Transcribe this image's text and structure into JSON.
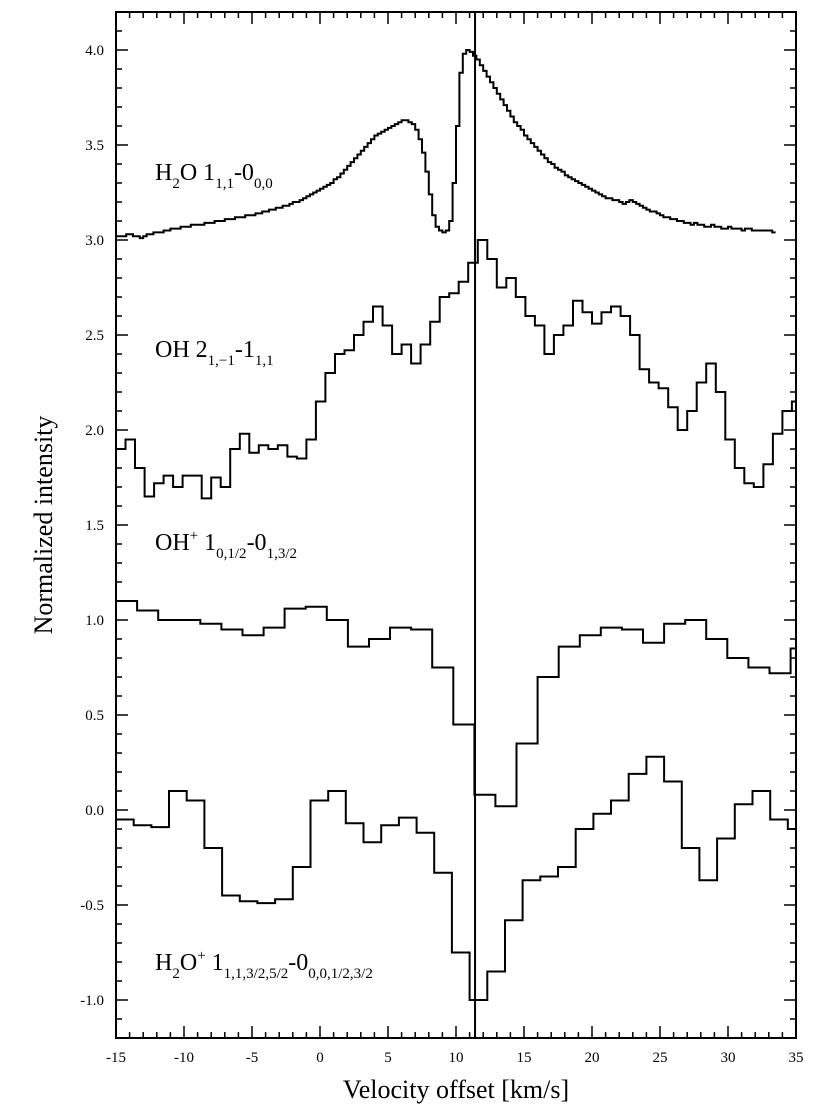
{
  "chart_data": {
    "type": "line",
    "step": true,
    "xlabel": "Velocity offset [km/s]",
    "ylabel": "Normalized intensity",
    "xlim": [
      -15,
      35
    ],
    "ylim": [
      -1.2,
      4.2
    ],
    "xticks": [
      "-15",
      "-10",
      "-5",
      "0",
      "5",
      "10",
      "15",
      "20",
      "25",
      "30",
      "35"
    ],
    "yticks": [
      "-1.0",
      "-0.5",
      "0.0",
      "0.5",
      "1.0",
      "1.5",
      "2.0",
      "2.5",
      "3.0",
      "3.5",
      "4.0"
    ],
    "vline_x": 11.4,
    "grid": false,
    "series": [
      {
        "label": {
          "parts": [
            [
              "n",
              "H"
            ],
            [
              "sub",
              "2"
            ],
            [
              "n",
              "O 1"
            ],
            [
              "sub",
              "1,1"
            ],
            [
              "n",
              "-0"
            ],
            [
              "sub",
              "0,0"
            ]
          ]
        },
        "x_start": -15,
        "x_step": 0.25,
        "values": [
          3.02,
          3.02,
          3.02,
          3.03,
          3.03,
          3.02,
          3.02,
          3.01,
          3.02,
          3.03,
          3.03,
          3.04,
          3.04,
          3.04,
          3.05,
          3.05,
          3.06,
          3.06,
          3.06,
          3.07,
          3.07,
          3.07,
          3.08,
          3.08,
          3.08,
          3.08,
          3.09,
          3.09,
          3.09,
          3.1,
          3.1,
          3.1,
          3.11,
          3.11,
          3.11,
          3.12,
          3.12,
          3.12,
          3.13,
          3.13,
          3.13,
          3.14,
          3.14,
          3.15,
          3.15,
          3.16,
          3.16,
          3.17,
          3.17,
          3.18,
          3.18,
          3.19,
          3.2,
          3.2,
          3.21,
          3.22,
          3.23,
          3.24,
          3.25,
          3.26,
          3.27,
          3.28,
          3.29,
          3.3,
          3.32,
          3.33,
          3.35,
          3.37,
          3.39,
          3.41,
          3.43,
          3.45,
          3.47,
          3.49,
          3.51,
          3.53,
          3.55,
          3.56,
          3.57,
          3.58,
          3.59,
          3.6,
          3.61,
          3.62,
          3.63,
          3.63,
          3.62,
          3.61,
          3.58,
          3.53,
          3.46,
          3.36,
          3.24,
          3.13,
          3.07,
          3.05,
          3.04,
          3.05,
          3.1,
          3.3,
          3.6,
          3.88,
          3.98,
          4.0,
          3.99,
          3.97,
          3.95,
          3.92,
          3.89,
          3.86,
          3.83,
          3.8,
          3.77,
          3.74,
          3.71,
          3.68,
          3.65,
          3.62,
          3.6,
          3.58,
          3.55,
          3.53,
          3.51,
          3.49,
          3.47,
          3.45,
          3.43,
          3.41,
          3.4,
          3.38,
          3.37,
          3.36,
          3.34,
          3.33,
          3.32,
          3.31,
          3.3,
          3.29,
          3.28,
          3.27,
          3.26,
          3.25,
          3.24,
          3.23,
          3.22,
          3.22,
          3.21,
          3.21,
          3.2,
          3.19,
          3.2,
          3.21,
          3.2,
          3.19,
          3.18,
          3.17,
          3.16,
          3.15,
          3.15,
          3.14,
          3.13,
          3.12,
          3.12,
          3.11,
          3.11,
          3.1,
          3.1,
          3.09,
          3.09,
          3.08,
          3.09,
          3.08,
          3.08,
          3.07,
          3.07,
          3.08,
          3.07,
          3.07,
          3.06,
          3.06,
          3.07,
          3.06,
          3.06,
          3.06,
          3.05,
          3.06,
          3.06,
          3.05,
          3.05,
          3.05,
          3.05,
          3.05,
          3.05,
          3.04
        ]
      },
      {
        "label": {
          "parts": [
            [
              "n",
              "OH 2"
            ],
            [
              "sub",
              "1,−1"
            ],
            [
              "n",
              "-1"
            ],
            [
              "sub",
              "1,1"
            ]
          ]
        },
        "x_start": -15,
        "x_step": 0.7,
        "values": [
          1.9,
          1.95,
          1.8,
          1.65,
          1.72,
          1.76,
          1.7,
          1.76,
          1.76,
          1.64,
          1.75,
          1.7,
          1.9,
          1.98,
          1.88,
          1.92,
          1.9,
          1.92,
          1.86,
          1.85,
          1.95,
          2.15,
          2.3,
          2.4,
          2.42,
          2.5,
          2.57,
          2.65,
          2.55,
          2.4,
          2.45,
          2.35,
          2.45,
          2.57,
          2.7,
          2.72,
          2.78,
          2.88,
          3.0,
          2.9,
          2.75,
          2.8,
          2.7,
          2.6,
          2.55,
          2.4,
          2.5,
          2.55,
          2.68,
          2.62,
          2.56,
          2.62,
          2.65,
          2.6,
          2.5,
          2.32,
          2.25,
          2.22,
          2.12,
          2.0,
          2.1,
          2.25,
          2.35,
          2.2,
          1.95,
          1.8,
          1.72,
          1.7,
          1.82,
          1.98,
          2.1,
          2.15
        ]
      },
      {
        "label": {
          "parts": [
            [
              "n",
              "OH"
            ],
            [
              "sup",
              "+"
            ],
            [
              "n",
              " 1"
            ],
            [
              "sub",
              "0,1/2"
            ],
            [
              "n",
              "-0"
            ],
            [
              "sub",
              "1,3/2"
            ]
          ]
        },
        "x_start": -15,
        "x_step": 1.55,
        "values": [
          1.1,
          1.05,
          1.0,
          1.0,
          0.98,
          0.95,
          0.92,
          0.96,
          1.06,
          1.07,
          1.0,
          0.86,
          0.9,
          0.96,
          0.95,
          0.75,
          0.45,
          0.08,
          0.02,
          0.35,
          0.7,
          0.86,
          0.92,
          0.96,
          0.95,
          0.88,
          0.98,
          1.0,
          0.9,
          0.8,
          0.75,
          0.72,
          0.85,
          0.98,
          0.95,
          0.88,
          0.85,
          0.86
        ]
      },
      {
        "label": {
          "parts": [
            [
              "n",
              "H"
            ],
            [
              "sub",
              "2"
            ],
            [
              "n",
              "O"
            ],
            [
              "sup",
              "+"
            ],
            [
              "n",
              " 1"
            ],
            [
              "sub",
              "1,1,3/2,5/2"
            ],
            [
              "n",
              "-0"
            ],
            [
              "sub",
              "0,0,1/2,3/2"
            ]
          ]
        },
        "x_start": -15,
        "x_step": 1.3,
        "values": [
          -0.05,
          -0.08,
          -0.09,
          0.1,
          0.05,
          -0.2,
          -0.45,
          -0.48,
          -0.49,
          -0.47,
          -0.3,
          0.05,
          0.1,
          -0.07,
          -0.17,
          -0.08,
          -0.04,
          -0.12,
          -0.33,
          -0.75,
          -1.0,
          -0.85,
          -0.58,
          -0.37,
          -0.35,
          -0.3,
          -0.1,
          -0.02,
          0.05,
          0.19,
          0.28,
          0.15,
          -0.2,
          -0.37,
          -0.15,
          0.03,
          0.1,
          -0.05,
          -0.1,
          -0.02,
          0.05,
          0.06,
          0.07,
          0.1
        ]
      }
    ]
  }
}
